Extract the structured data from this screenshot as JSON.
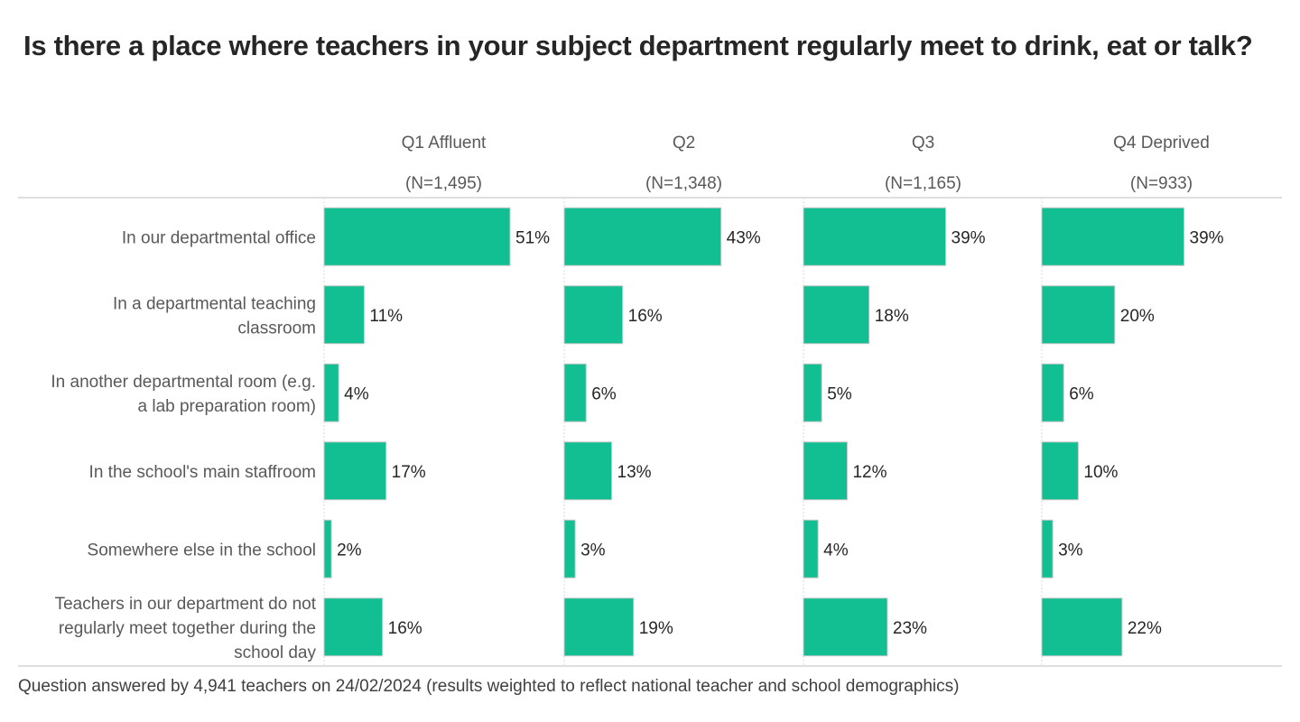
{
  "title": "Is there a place where teachers in your subject department regularly meet to drink, eat or talk?",
  "footnote": "Question answered by 4,941 teachers on 24/02/2024 (results weighted to reflect national teacher and school demographics)",
  "colors": {
    "bar": "#12BF92",
    "bar_border": "#C8C8C8",
    "category_text": "#595959",
    "value_text": "#262626",
    "header_text": "#595959",
    "gridline": "#D9D9D9",
    "rule": "#BFBFBF"
  },
  "chart_data": {
    "type": "bar",
    "orientation": "horizontal",
    "value_suffix": "%",
    "xlim": [
      0,
      60
    ],
    "categories": [
      [
        "In our departmental office"
      ],
      [
        "In a departmental teaching",
        "classroom"
      ],
      [
        "In another departmental room (e.g.",
        "a lab preparation room)"
      ],
      [
        "In the school's main staffroom"
      ],
      [
        "Somewhere else in the school"
      ],
      [
        "Teachers in our department do not",
        "regularly meet together during the",
        "school day"
      ]
    ],
    "series": [
      {
        "name": "Q1 Affluent",
        "n_label": "(N=1,495)",
        "values": [
          51,
          11,
          4,
          17,
          2,
          16
        ]
      },
      {
        "name": "Q2",
        "n_label": "(N=1,348)",
        "values": [
          43,
          16,
          6,
          13,
          3,
          19
        ]
      },
      {
        "name": "Q3",
        "n_label": "(N=1,165)",
        "values": [
          39,
          18,
          5,
          12,
          4,
          23
        ]
      },
      {
        "name": "Q4 Deprived",
        "n_label": "(N=933)",
        "values": [
          39,
          20,
          6,
          10,
          3,
          22
        ]
      }
    ]
  }
}
